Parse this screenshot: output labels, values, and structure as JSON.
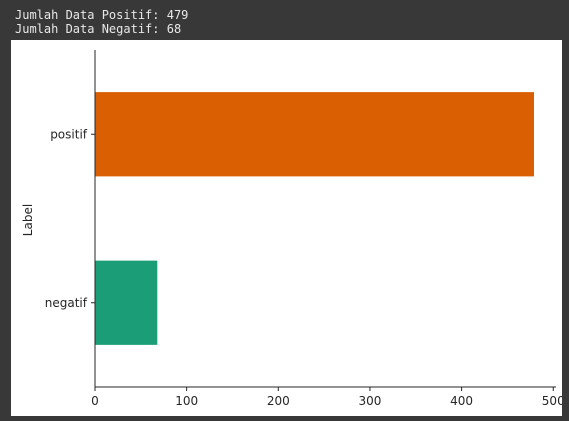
{
  "console": {
    "line1": "Jumlah Data Positif: 479",
    "line2": "Jumlah Data Negatif: 68"
  },
  "chart_data": {
    "type": "bar",
    "orientation": "horizontal",
    "categories": [
      "negatif",
      "positif"
    ],
    "values": [
      68,
      479
    ],
    "colors": [
      "#1b9e77",
      "#d95f02"
    ],
    "xlabel": "",
    "ylabel": "Label",
    "xlim": [
      0,
      503
    ],
    "xticks": [
      0,
      100,
      200,
      300,
      400,
      500
    ],
    "grid": false
  }
}
